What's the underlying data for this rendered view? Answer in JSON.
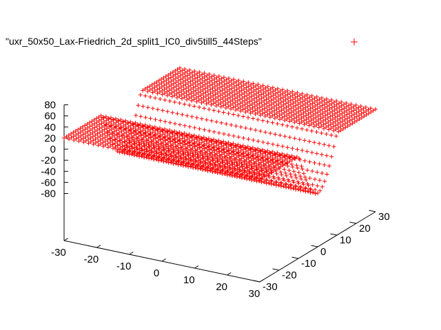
{
  "chart_data": {
    "type": "scatter",
    "title": "",
    "xlabel": "",
    "ylabel": "",
    "zlabel": "",
    "grid": false,
    "legend_position": "top-right",
    "series": [
      {
        "name": "\"uxr_50x50_Lax-Friedrich_2d_split1_IC0_div5till5_44Steps\"",
        "marker": "+",
        "color": "#ff0000",
        "surface": {
          "x_range": [
            -30,
            30
          ],
          "y_range": [
            -30,
            30
          ],
          "z_low": 20,
          "z_high": -20,
          "z_plateau_far": 20,
          "transition_y": [
            -10,
            10
          ]
        }
      }
    ],
    "x_axis": {
      "range": [
        -30,
        30
      ],
      "ticks": [
        -30,
        -20,
        -10,
        0,
        10,
        20,
        30
      ],
      "tick_labels": [
        "-30",
        "-20",
        "-10",
        "0",
        "10",
        "20",
        "30"
      ]
    },
    "y_axis": {
      "range": [
        -30,
        30
      ],
      "ticks": [
        -30,
        -20,
        -10,
        0,
        10,
        20,
        30
      ],
      "tick_labels": [
        "-30",
        "-20",
        "-10",
        "0",
        "10",
        "20",
        "30"
      ]
    },
    "z_axis": {
      "range": [
        -80,
        80
      ],
      "ticks": [
        -80,
        -60,
        -40,
        -20,
        0,
        20,
        40,
        60,
        80
      ],
      "tick_labels": [
        "-80",
        "-60",
        "-40",
        "-20",
        "0",
        "20",
        "40",
        "60",
        "80"
      ]
    }
  }
}
